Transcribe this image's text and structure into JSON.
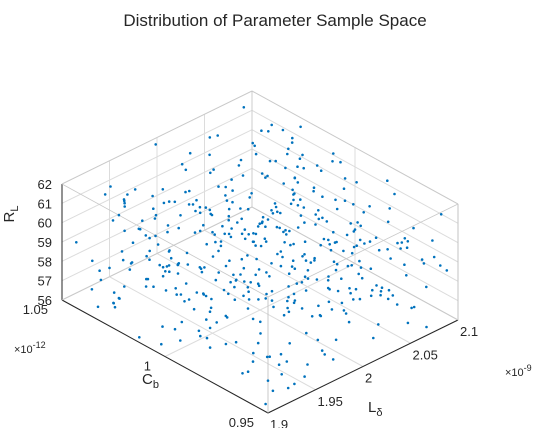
{
  "chart_data": {
    "type": "scatter",
    "title": "Distribution of Parameter Sample Space",
    "point_color": "#0072BD",
    "grid": true,
    "box": true,
    "axes": {
      "x": {
        "label_main": "L",
        "label_sub": "δ",
        "range": [
          1.9,
          2.1
        ],
        "ticks": [
          "1.9",
          "1.95",
          "2",
          "2.05",
          "2.1"
        ],
        "exponent_base": "×10",
        "exponent_power": "-9"
      },
      "y": {
        "label_main": "C",
        "label_sub": "b",
        "range": [
          0.95,
          1.05
        ],
        "ticks": [
          "0.95",
          "1",
          "1.05"
        ],
        "exponent_base": "×10",
        "exponent_power": "-12"
      },
      "z": {
        "label_main": "R",
        "label_sub": "L",
        "range": [
          56,
          62
        ],
        "ticks": [
          "56",
          "57",
          "58",
          "59",
          "60",
          "61",
          "62"
        ]
      }
    },
    "n_points": 450,
    "x_unit_note": "x values in units of 1e-9, y values in units of 1e-12",
    "sample_points_x": [],
    "sample_points_y": [],
    "sample_points_z": []
  }
}
